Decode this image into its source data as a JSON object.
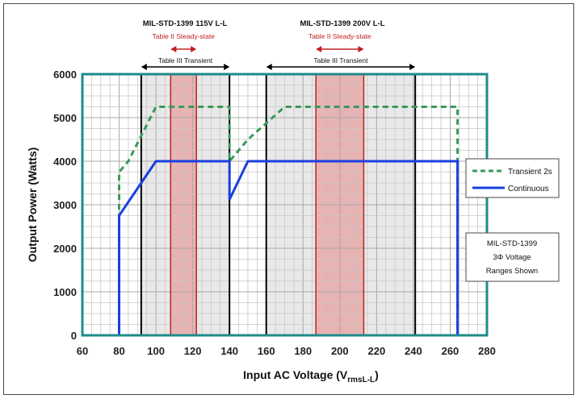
{
  "chart_data": {
    "type": "line",
    "xlabel": "Input AC Voltage (V",
    "xlabel_sub": "rmsL-L",
    "xlabel_close": ")",
    "ylabel": "Output Power (Watts)",
    "xlim": [
      60,
      280
    ],
    "ylim": [
      0,
      6000
    ],
    "x_ticks": [
      60,
      80,
      100,
      120,
      140,
      160,
      180,
      200,
      220,
      240,
      260,
      280
    ],
    "y_ticks": [
      0,
      1000,
      2000,
      3000,
      4000,
      5000,
      6000
    ],
    "grid": true,
    "legend_position": "right",
    "series": [
      {
        "name": "Transient 2s",
        "style": "dashed",
        "color": "#3a9a5a",
        "points": [
          [
            80,
            0
          ],
          [
            80,
            3750
          ],
          [
            85,
            4000
          ],
          [
            100,
            5250
          ],
          [
            140,
            5250
          ],
          [
            140,
            4000
          ],
          [
            150,
            4500
          ],
          [
            170,
            5250
          ],
          [
            264,
            5250
          ],
          [
            264,
            0
          ]
        ]
      },
      {
        "name": "Continuous",
        "style": "solid",
        "color": "#1a3fe0",
        "points": [
          [
            80,
            0
          ],
          [
            80,
            2750
          ],
          [
            100,
            4000
          ],
          [
            140,
            4000
          ],
          [
            140,
            3120
          ],
          [
            150,
            4000
          ],
          [
            264,
            4000
          ],
          [
            264,
            0
          ]
        ]
      }
    ],
    "regions": [
      {
        "kind": "transient",
        "x0": 92,
        "x1": 140,
        "label": "Table III Transient"
      },
      {
        "kind": "steady",
        "x0": 108,
        "x1": 122,
        "label": "Table II Steady-state"
      },
      {
        "kind": "transient",
        "x0": 160,
        "x1": 241,
        "label": "Table III Transient"
      },
      {
        "kind": "steady",
        "x0": 187,
        "x1": 213,
        "label": "Table II Steady-state"
      }
    ],
    "annotations": {
      "group1_header": "MIL-STD-1399 115V L-L",
      "group2_header": "MIL-STD-1399 200V L-L",
      "note_lines": [
        "MIL-STD-1399",
        "3Φ Voltage",
        "Ranges Shown"
      ]
    },
    "colors": {
      "frame_teal": "#1f8a8a",
      "transient_fill": "#d9d9d9",
      "steady_fill": "#e8a0a0",
      "steady_stroke": "#c02020"
    }
  }
}
